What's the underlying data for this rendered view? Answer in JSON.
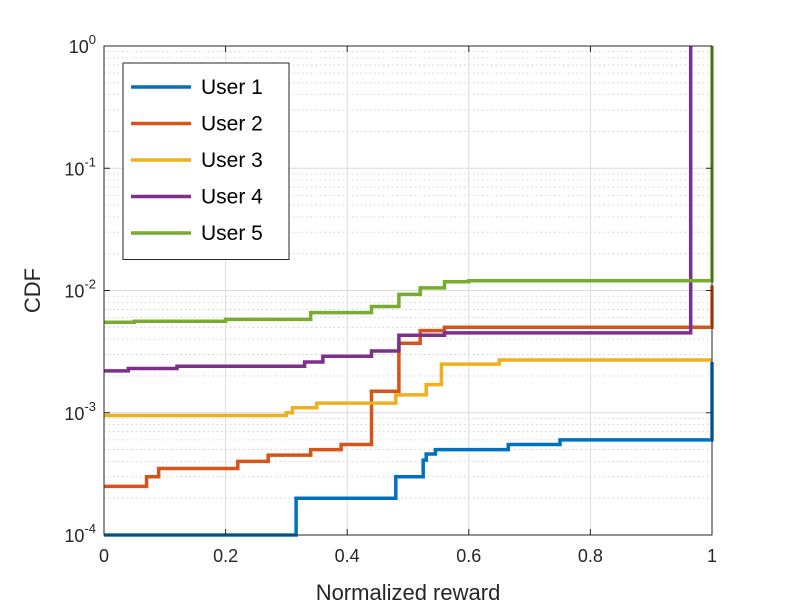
{
  "chart_data": {
    "type": "line",
    "title": "",
    "xlabel": "Normalized reward",
    "ylabel": "CDF",
    "xscale": "linear",
    "yscale": "log",
    "xlim": [
      0,
      1
    ],
    "ylim": [
      0.0001,
      1
    ],
    "xticks": [
      0,
      0.2,
      0.4,
      0.6,
      0.8,
      1
    ],
    "xtick_labels": [
      "0",
      "0.2",
      "0.4",
      "0.6",
      "0.8",
      "1"
    ],
    "yticks": [
      0.0001,
      0.001,
      0.01,
      0.1,
      1
    ],
    "ytick_labels": [
      {
        "base": "10",
        "exp": "-4"
      },
      {
        "base": "10",
        "exp": "-3"
      },
      {
        "base": "10",
        "exp": "-2"
      },
      {
        "base": "10",
        "exp": "-1"
      },
      {
        "base": "10",
        "exp": "0"
      }
    ],
    "grid": true,
    "legend_position": "top-left",
    "series": [
      {
        "name": "User 1",
        "color": "#0072BD",
        "step": true,
        "points": [
          [
            0,
            0.0001
          ],
          [
            0.316,
            0.0001
          ],
          [
            0.316,
            0.0002
          ],
          [
            0.48,
            0.0002
          ],
          [
            0.48,
            0.0003
          ],
          [
            0.525,
            0.0003
          ],
          [
            0.525,
            0.00041
          ],
          [
            0.53,
            0.00041
          ],
          [
            0.53,
            0.00046
          ],
          [
            0.545,
            0.00046
          ],
          [
            0.545,
            0.0005
          ],
          [
            0.665,
            0.0005
          ],
          [
            0.665,
            0.00055
          ],
          [
            0.75,
            0.00055
          ],
          [
            0.75,
            0.0006
          ],
          [
            1.0,
            0.0006
          ],
          [
            1.0,
            0.0026
          ]
        ]
      },
      {
        "name": "User 2",
        "color": "#D95319",
        "step": true,
        "points": [
          [
            0,
            0.00025
          ],
          [
            0.07,
            0.00025
          ],
          [
            0.07,
            0.0003
          ],
          [
            0.09,
            0.0003
          ],
          [
            0.09,
            0.00035
          ],
          [
            0.22,
            0.00035
          ],
          [
            0.22,
            0.0004
          ],
          [
            0.27,
            0.0004
          ],
          [
            0.27,
            0.00045
          ],
          [
            0.34,
            0.00045
          ],
          [
            0.34,
            0.0005
          ],
          [
            0.39,
            0.0005
          ],
          [
            0.39,
            0.00055
          ],
          [
            0.44,
            0.00055
          ],
          [
            0.44,
            0.0015
          ],
          [
            0.485,
            0.0015
          ],
          [
            0.485,
            0.0037
          ],
          [
            0.52,
            0.0037
          ],
          [
            0.52,
            0.0047
          ],
          [
            0.56,
            0.0047
          ],
          [
            0.56,
            0.005
          ],
          [
            1.0,
            0.005
          ],
          [
            1.0,
            0.011
          ]
        ]
      },
      {
        "name": "User 3",
        "color": "#EDB120",
        "step": true,
        "points": [
          [
            0,
            0.00095
          ],
          [
            0.3,
            0.00095
          ],
          [
            0.3,
            0.001
          ],
          [
            0.31,
            0.001
          ],
          [
            0.31,
            0.0011
          ],
          [
            0.35,
            0.0011
          ],
          [
            0.35,
            0.0012
          ],
          [
            0.48,
            0.0012
          ],
          [
            0.48,
            0.0014
          ],
          [
            0.53,
            0.0014
          ],
          [
            0.53,
            0.0017
          ],
          [
            0.555,
            0.0017
          ],
          [
            0.555,
            0.0025
          ],
          [
            0.65,
            0.0025
          ],
          [
            0.65,
            0.0027
          ],
          [
            1.0,
            0.0027
          ]
        ]
      },
      {
        "name": "User 4",
        "color": "#7E2F8E",
        "step": true,
        "points": [
          [
            0,
            0.0022
          ],
          [
            0.04,
            0.0022
          ],
          [
            0.04,
            0.0023
          ],
          [
            0.12,
            0.0023
          ],
          [
            0.12,
            0.0024
          ],
          [
            0.33,
            0.0024
          ],
          [
            0.33,
            0.0026
          ],
          [
            0.36,
            0.0026
          ],
          [
            0.36,
            0.0029
          ],
          [
            0.44,
            0.0029
          ],
          [
            0.44,
            0.0032
          ],
          [
            0.485,
            0.0032
          ],
          [
            0.485,
            0.0043
          ],
          [
            0.56,
            0.0043
          ],
          [
            0.56,
            0.0045
          ],
          [
            0.965,
            0.0045
          ],
          [
            0.965,
            1.0
          ]
        ]
      },
      {
        "name": "User 5",
        "color": "#77AC30",
        "step": true,
        "points": [
          [
            0,
            0.0055
          ],
          [
            0.05,
            0.0055
          ],
          [
            0.05,
            0.0056
          ],
          [
            0.2,
            0.0056
          ],
          [
            0.2,
            0.0058
          ],
          [
            0.34,
            0.0058
          ],
          [
            0.34,
            0.0066
          ],
          [
            0.44,
            0.0066
          ],
          [
            0.44,
            0.0074
          ],
          [
            0.485,
            0.0074
          ],
          [
            0.485,
            0.0093
          ],
          [
            0.52,
            0.0093
          ],
          [
            0.52,
            0.0105
          ],
          [
            0.56,
            0.0105
          ],
          [
            0.56,
            0.0118
          ],
          [
            0.6,
            0.0118
          ],
          [
            0.6,
            0.012
          ],
          [
            1.0,
            0.012
          ],
          [
            1.0,
            1.0
          ]
        ]
      }
    ]
  }
}
